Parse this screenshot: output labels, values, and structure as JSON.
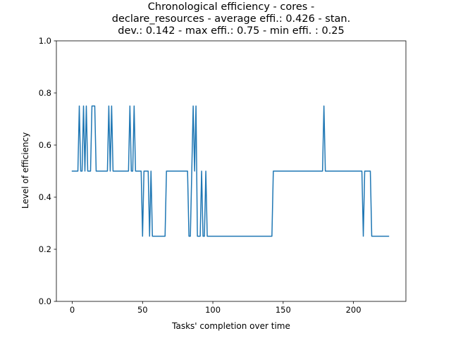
{
  "chart_data": {
    "type": "line",
    "title_lines": [
      "Chronological efficiency - cores -",
      "declare_resources - average effi.: 0.426 - stan.",
      "dev.: 0.142 - max effi.: 0.75 - min effi. : 0.25"
    ],
    "xlabel": "Tasks' completion over time",
    "ylabel": "Level of efficiency",
    "xlim": [
      -11.3,
      237.3
    ],
    "ylim": [
      0.0,
      1.0
    ],
    "xticks": [
      0,
      50,
      100,
      150,
      200
    ],
    "yticks": [
      0.0,
      0.2,
      0.4,
      0.6,
      0.8,
      1.0
    ],
    "xtick_labels": [
      "0",
      "50",
      "100",
      "150",
      "200"
    ],
    "ytick_labels": [
      "0.0",
      "0.2",
      "0.4",
      "0.6",
      "0.8",
      "1.0"
    ],
    "grid": false,
    "line_color": "#1f77b4",
    "series": [
      {
        "x": [
          0,
          4,
          5,
          6,
          7,
          8,
          9,
          10,
          11,
          13,
          14,
          15,
          16,
          17,
          25,
          26,
          27,
          28,
          29,
          40,
          41,
          42,
          43,
          44,
          45,
          48,
          49,
          50,
          51,
          54,
          55,
          56,
          57,
          58,
          60,
          66,
          67,
          82,
          83,
          84,
          85,
          86,
          87,
          88,
          89,
          90,
          91,
          92,
          93,
          94,
          95,
          96,
          97,
          98,
          142,
          143,
          177,
          178,
          179,
          180,
          205,
          206,
          207,
          208,
          211,
          212,
          213,
          225
        ],
        "y": [
          0.5,
          0.5,
          0.75,
          0.5,
          0.5,
          0.75,
          0.5,
          0.75,
          0.5,
          0.5,
          0.75,
          0.75,
          0.75,
          0.5,
          0.5,
          0.75,
          0.5,
          0.75,
          0.5,
          0.5,
          0.75,
          0.5,
          0.5,
          0.75,
          0.5,
          0.5,
          0.5,
          0.25,
          0.5,
          0.5,
          0.25,
          0.5,
          0.25,
          0.25,
          0.25,
          0.25,
          0.5,
          0.5,
          0.25,
          0.25,
          0.5,
          0.75,
          0.5,
          0.75,
          0.25,
          0.25,
          0.25,
          0.5,
          0.25,
          0.25,
          0.5,
          0.25,
          0.25,
          0.25,
          0.25,
          0.5,
          0.5,
          0.5,
          0.75,
          0.5,
          0.5,
          0.5,
          0.25,
          0.5,
          0.5,
          0.5,
          0.25,
          0.25
        ]
      }
    ]
  }
}
